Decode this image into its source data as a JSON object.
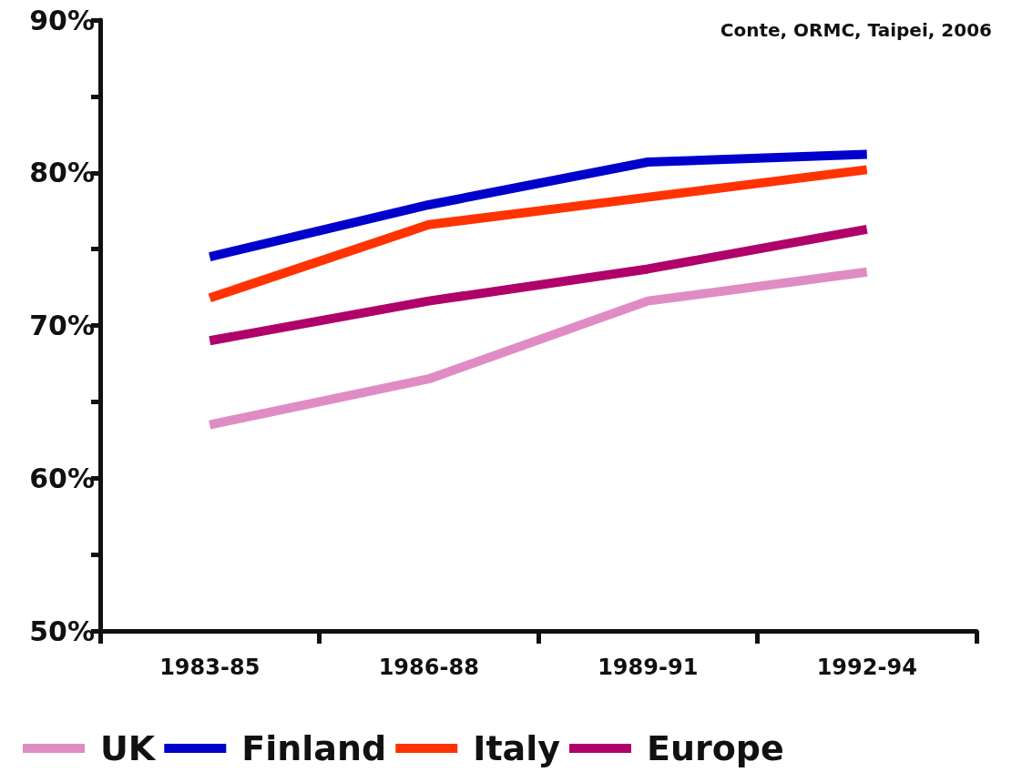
{
  "chart_data": {
    "type": "line",
    "categories": [
      "1983-85",
      "1986-88",
      "1989-91",
      "1992-94"
    ],
    "series": [
      {
        "name": "UK",
        "color": "#e08cc4",
        "values": [
          63.5,
          66.5,
          71.6,
          73.5
        ]
      },
      {
        "name": "Finland",
        "color": "#0000cc",
        "values": [
          74.5,
          77.9,
          80.7,
          81.2
        ]
      },
      {
        "name": "Italy",
        "color": "#ff3300",
        "values": [
          71.8,
          76.6,
          78.4,
          80.2
        ]
      },
      {
        "name": "Europe",
        "color": "#b0006a",
        "values": [
          69.0,
          71.6,
          73.7,
          76.3
        ]
      }
    ],
    "ylim": [
      50,
      90
    ],
    "yticks": [
      {
        "value": 50,
        "label": "50%"
      },
      {
        "value": 55,
        "label": null
      },
      {
        "value": 60,
        "label": "60%"
      },
      {
        "value": 65,
        "label": null
      },
      {
        "value": 70,
        "label": "70%"
      },
      {
        "value": 75,
        "label": null
      },
      {
        "value": 80,
        "label": "80%"
      },
      {
        "value": 85,
        "label": null
      },
      {
        "value": 90,
        "label": "90%"
      }
    ],
    "annotations": [
      "Conte, ORMC, Taipei, 2006"
    ],
    "grid": false,
    "legend": "bottom",
    "marker": "none",
    "line_style": "solid"
  }
}
